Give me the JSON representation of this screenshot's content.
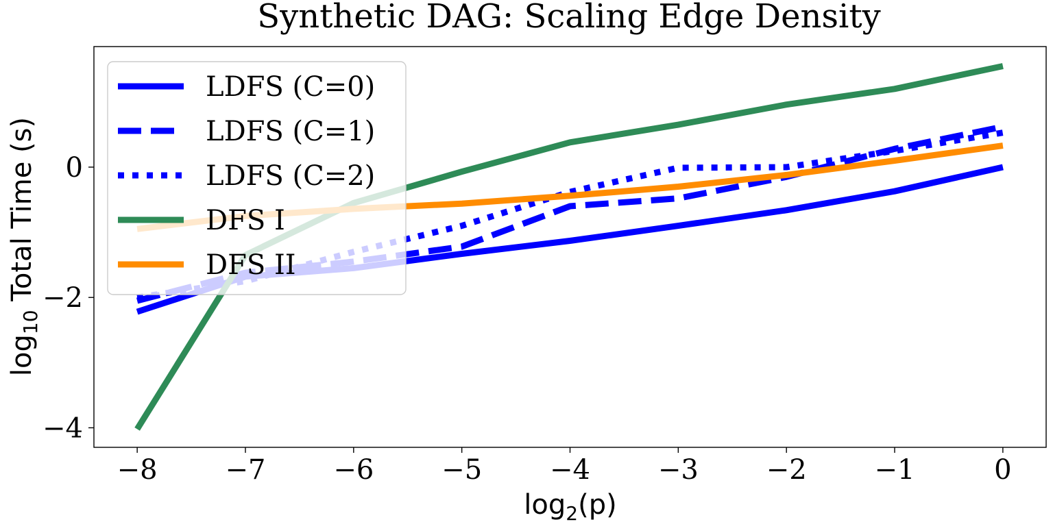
{
  "chart_data": {
    "type": "line",
    "title": "Synthetic DAG: Scaling Edge Density",
    "xlabel": "log2(p)",
    "xlabel_base": "log",
    "xlabel_sub": "2",
    "xlabel_rest": "(p)",
    "ylabel": "log10 Total Time (s)",
    "ylabel_base": "log",
    "ylabel_sub": "10",
    "ylabel_rest": " Total Time (s)",
    "xlim": [
      -8.4,
      0.4
    ],
    "ylim": [
      -4.3,
      1.85
    ],
    "xticks": [
      -8,
      -7,
      -6,
      -5,
      -4,
      -3,
      -2,
      -1,
      0
    ],
    "xtick_labels": [
      "−8",
      "−7",
      "−6",
      "−5",
      "−4",
      "−3",
      "−2",
      "−1",
      "0"
    ],
    "yticks": [
      -4,
      -2,
      0
    ],
    "ytick_labels": [
      "−4",
      "−2",
      "0"
    ],
    "x": [
      -8,
      -7,
      -6,
      -5,
      -4,
      -3,
      -2,
      -1,
      0
    ],
    "series": [
      {
        "name": "LDFS (C=0)",
        "color": "#0000ff",
        "dash": "solid",
        "values": [
          -2.22,
          -1.68,
          -1.55,
          -1.33,
          -1.13,
          -0.9,
          -0.66,
          -0.37,
          0.0
        ]
      },
      {
        "name": "LDFS (C=1)",
        "color": "#0000ff",
        "dash": "dashed",
        "values": [
          -2.05,
          -1.62,
          -1.45,
          -1.22,
          -0.6,
          -0.48,
          -0.15,
          0.28,
          0.62
        ]
      },
      {
        "name": "LDFS (C=2)",
        "color": "#0000ff",
        "dash": "dotted",
        "values": [
          -2.0,
          -1.75,
          -1.3,
          -0.9,
          -0.38,
          -0.01,
          0.0,
          0.25,
          0.53
        ]
      },
      {
        "name": "DFS I",
        "color": "#2e8b57",
        "dash": "solid",
        "values": [
          -4.02,
          -1.35,
          -0.55,
          -0.07,
          0.38,
          0.65,
          0.96,
          1.2,
          1.55
        ]
      },
      {
        "name": "DFS II",
        "color": "#ff8c00",
        "dash": "solid",
        "values": [
          -0.95,
          -0.75,
          -0.64,
          -0.56,
          -0.44,
          -0.3,
          -0.12,
          0.1,
          0.33
        ]
      }
    ],
    "legend_position": "upper-left"
  }
}
